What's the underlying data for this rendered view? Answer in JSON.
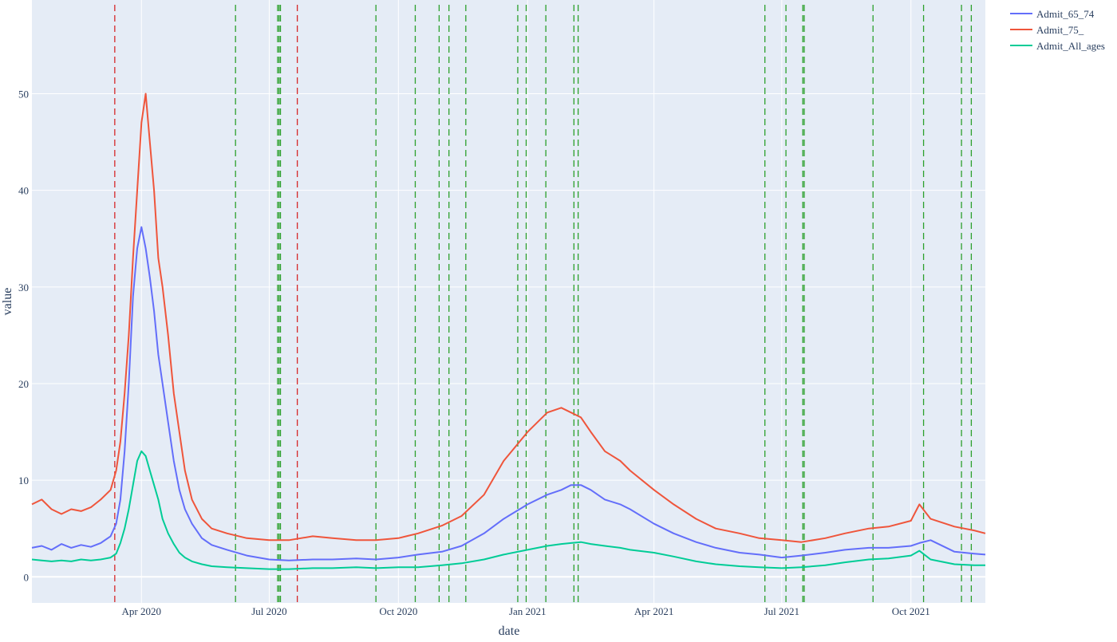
{
  "chart_data": {
    "type": "line",
    "xlabel": "date",
    "ylabel": "value",
    "x_range": [
      "2020-01-14",
      "2021-11-23"
    ],
    "y_range": [
      -2.7,
      59.7
    ],
    "x_ticks": [
      {
        "date": "2020-04-01",
        "label": "Apr 2020"
      },
      {
        "date": "2020-07-01",
        "label": "Jul 2020"
      },
      {
        "date": "2020-10-01",
        "label": "Oct 2020"
      },
      {
        "date": "2021-01-01",
        "label": "Jan 2021"
      },
      {
        "date": "2021-04-01",
        "label": "Apr 2021"
      },
      {
        "date": "2021-07-01",
        "label": "Jul 2021"
      },
      {
        "date": "2021-10-01",
        "label": "Oct 2021"
      }
    ],
    "y_ticks": [
      {
        "value": 0,
        "label": "0"
      },
      {
        "value": 10,
        "label": "10"
      },
      {
        "value": 20,
        "label": "20"
      },
      {
        "value": 30,
        "label": "30"
      },
      {
        "value": 40,
        "label": "40"
      },
      {
        "value": 50,
        "label": "50"
      }
    ],
    "grid": true,
    "legend_position": "top-right-outside",
    "colors": {
      "plot_bg": "#e5ecf6",
      "grid": "#ffffff",
      "red_line": "#d62728",
      "green_line": "#2ca02c"
    },
    "series": [
      {
        "name": "Admit_65_74",
        "color": "#636efa",
        "x": [
          "2020-01-14",
          "2020-01-21",
          "2020-01-28",
          "2020-02-04",
          "2020-02-11",
          "2020-02-18",
          "2020-02-25",
          "2020-03-03",
          "2020-03-10",
          "2020-03-14",
          "2020-03-17",
          "2020-03-20",
          "2020-03-23",
          "2020-03-26",
          "2020-03-29",
          "2020-04-01",
          "2020-04-04",
          "2020-04-07",
          "2020-04-10",
          "2020-04-13",
          "2020-04-16",
          "2020-04-20",
          "2020-04-24",
          "2020-04-28",
          "2020-05-02",
          "2020-05-07",
          "2020-05-14",
          "2020-05-21",
          "2020-06-01",
          "2020-06-15",
          "2020-07-01",
          "2020-07-15",
          "2020-08-01",
          "2020-08-15",
          "2020-09-01",
          "2020-09-15",
          "2020-10-01",
          "2020-10-15",
          "2020-11-01",
          "2020-11-15",
          "2020-12-01",
          "2020-12-15",
          "2021-01-01",
          "2021-01-15",
          "2021-01-25",
          "2021-02-01",
          "2021-02-08",
          "2021-02-15",
          "2021-02-25",
          "2021-03-08",
          "2021-03-15",
          "2021-04-01",
          "2021-04-15",
          "2021-05-01",
          "2021-05-15",
          "2021-06-01",
          "2021-06-15",
          "2021-07-01",
          "2021-07-15",
          "2021-08-01",
          "2021-08-15",
          "2021-09-01",
          "2021-09-15",
          "2021-10-01",
          "2021-10-07",
          "2021-10-15",
          "2021-11-01",
          "2021-11-15",
          "2021-11-23"
        ],
        "y": [
          3,
          3.2,
          2.8,
          3.4,
          3,
          3.3,
          3.1,
          3.5,
          4.2,
          5.5,
          8,
          13,
          20,
          29,
          34,
          36.2,
          34,
          31,
          27.5,
          23,
          20,
          16,
          12,
          9,
          7,
          5.5,
          4,
          3.3,
          2.8,
          2.2,
          1.8,
          1.7,
          1.8,
          1.8,
          1.9,
          1.8,
          2,
          2.3,
          2.6,
          3.2,
          4.5,
          6,
          7.5,
          8.5,
          9,
          9.5,
          9.5,
          9,
          8,
          7.5,
          7,
          5.5,
          4.5,
          3.6,
          3,
          2.5,
          2.3,
          2,
          2.2,
          2.5,
          2.8,
          3,
          3,
          3.2,
          3.5,
          3.8,
          2.6,
          2.4,
          2.3
        ]
      },
      {
        "name": "Admit_75_",
        "color": "#ef553b",
        "x": [
          "2020-01-14",
          "2020-01-21",
          "2020-01-28",
          "2020-02-04",
          "2020-02-11",
          "2020-02-18",
          "2020-02-25",
          "2020-03-03",
          "2020-03-10",
          "2020-03-14",
          "2020-03-17",
          "2020-03-20",
          "2020-03-23",
          "2020-03-26",
          "2020-03-29",
          "2020-04-01",
          "2020-04-04",
          "2020-04-07",
          "2020-04-10",
          "2020-04-13",
          "2020-04-16",
          "2020-04-20",
          "2020-04-24",
          "2020-04-28",
          "2020-05-02",
          "2020-05-07",
          "2020-05-14",
          "2020-05-21",
          "2020-06-01",
          "2020-06-15",
          "2020-07-01",
          "2020-07-15",
          "2020-08-01",
          "2020-08-15",
          "2020-09-01",
          "2020-09-15",
          "2020-10-01",
          "2020-10-15",
          "2020-11-01",
          "2020-11-15",
          "2020-12-01",
          "2020-12-15",
          "2021-01-01",
          "2021-01-15",
          "2021-01-25",
          "2021-02-01",
          "2021-02-08",
          "2021-02-15",
          "2021-02-25",
          "2021-03-08",
          "2021-03-15",
          "2021-04-01",
          "2021-04-15",
          "2021-05-01",
          "2021-05-15",
          "2021-06-01",
          "2021-06-15",
          "2021-07-01",
          "2021-07-15",
          "2021-08-01",
          "2021-08-15",
          "2021-09-01",
          "2021-09-15",
          "2021-10-01",
          "2021-10-07",
          "2021-10-15",
          "2021-11-01",
          "2021-11-15",
          "2021-11-23"
        ],
        "y": [
          7.5,
          8,
          7,
          6.5,
          7,
          6.8,
          7.2,
          8,
          9,
          11,
          14,
          19,
          25,
          33,
          40,
          47,
          50,
          45,
          40,
          33,
          30,
          25,
          19,
          15,
          11,
          8,
          6,
          5,
          4.5,
          4,
          3.8,
          3.8,
          4.2,
          4,
          3.8,
          3.8,
          4,
          4.5,
          5.3,
          6.3,
          8.5,
          12,
          15,
          17,
          17.5,
          17,
          16.5,
          15,
          13,
          12,
          11,
          9,
          7.5,
          6,
          5,
          4.5,
          4,
          3.8,
          3.6,
          4,
          4.5,
          5,
          5.2,
          5.8,
          7.5,
          6,
          5.2,
          4.8,
          4.5
        ]
      },
      {
        "name": "Admit_All_ages",
        "color": "#00cc96",
        "x": [
          "2020-01-14",
          "2020-01-21",
          "2020-01-28",
          "2020-02-04",
          "2020-02-11",
          "2020-02-18",
          "2020-02-25",
          "2020-03-03",
          "2020-03-10",
          "2020-03-14",
          "2020-03-17",
          "2020-03-20",
          "2020-03-23",
          "2020-03-26",
          "2020-03-29",
          "2020-04-01",
          "2020-04-04",
          "2020-04-07",
          "2020-04-10",
          "2020-04-13",
          "2020-04-16",
          "2020-04-20",
          "2020-04-24",
          "2020-04-28",
          "2020-05-02",
          "2020-05-07",
          "2020-05-14",
          "2020-05-21",
          "2020-06-01",
          "2020-06-15",
          "2020-07-01",
          "2020-07-15",
          "2020-08-01",
          "2020-08-15",
          "2020-09-01",
          "2020-09-15",
          "2020-10-01",
          "2020-10-15",
          "2020-11-01",
          "2020-11-15",
          "2020-12-01",
          "2020-12-15",
          "2021-01-01",
          "2021-01-15",
          "2021-01-25",
          "2021-02-01",
          "2021-02-08",
          "2021-02-15",
          "2021-02-25",
          "2021-03-08",
          "2021-03-15",
          "2021-04-01",
          "2021-04-15",
          "2021-05-01",
          "2021-05-15",
          "2021-06-01",
          "2021-06-15",
          "2021-07-01",
          "2021-07-15",
          "2021-08-01",
          "2021-08-15",
          "2021-09-01",
          "2021-09-15",
          "2021-10-01",
          "2021-10-07",
          "2021-10-15",
          "2021-11-01",
          "2021-11-15",
          "2021-11-23"
        ],
        "y": [
          1.8,
          1.7,
          1.6,
          1.7,
          1.6,
          1.8,
          1.7,
          1.8,
          2,
          2.4,
          3.5,
          5,
          7,
          9.5,
          12,
          13,
          12.5,
          11,
          9.5,
          8,
          6,
          4.5,
          3.4,
          2.5,
          2,
          1.6,
          1.3,
          1.1,
          1,
          0.9,
          0.8,
          0.8,
          0.9,
          0.9,
          1,
          0.9,
          1,
          1,
          1.2,
          1.4,
          1.8,
          2.3,
          2.8,
          3.2,
          3.4,
          3.5,
          3.6,
          3.4,
          3.2,
          3,
          2.8,
          2.5,
          2.1,
          1.6,
          1.3,
          1.1,
          1,
          0.9,
          1,
          1.2,
          1.5,
          1.8,
          1.9,
          2.2,
          2.7,
          1.8,
          1.3,
          1.2,
          1.2
        ]
      }
    ],
    "vlines": [
      {
        "date": "2020-03-13",
        "color": "red"
      },
      {
        "date": "2020-06-07",
        "color": "green"
      },
      {
        "date": "2020-07-07",
        "color": "green"
      },
      {
        "date": "2020-07-08",
        "color": "green"
      },
      {
        "date": "2020-07-09",
        "color": "green"
      },
      {
        "date": "2020-07-21",
        "color": "red"
      },
      {
        "date": "2020-09-15",
        "color": "green"
      },
      {
        "date": "2020-10-13",
        "color": "green"
      },
      {
        "date": "2020-10-30",
        "color": "green"
      },
      {
        "date": "2020-11-06",
        "color": "green"
      },
      {
        "date": "2020-11-18",
        "color": "green"
      },
      {
        "date": "2020-12-25",
        "color": "green"
      },
      {
        "date": "2020-12-31",
        "color": "green"
      },
      {
        "date": "2021-01-14",
        "color": "green"
      },
      {
        "date": "2021-02-03",
        "color": "green"
      },
      {
        "date": "2021-02-06",
        "color": "green"
      },
      {
        "date": "2021-06-19",
        "color": "green"
      },
      {
        "date": "2021-07-04",
        "color": "green"
      },
      {
        "date": "2021-07-16",
        "color": "green"
      },
      {
        "date": "2021-07-17",
        "color": "green"
      },
      {
        "date": "2021-09-04",
        "color": "green"
      },
      {
        "date": "2021-10-10",
        "color": "green"
      },
      {
        "date": "2021-11-06",
        "color": "green"
      },
      {
        "date": "2021-11-13",
        "color": "green"
      }
    ]
  }
}
